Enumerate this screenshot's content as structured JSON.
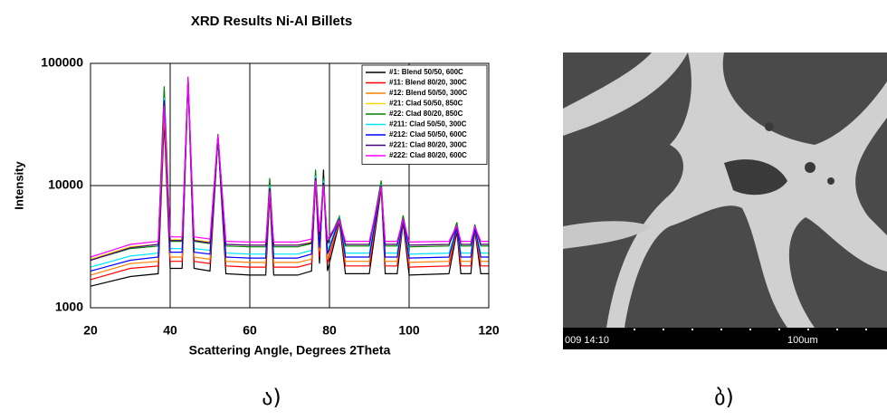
{
  "chart_data": {
    "type": "line",
    "title": "XRD Results Ni-Al Billets",
    "xlabel": "Scattering Angle, Degrees 2Theta",
    "ylabel": "Intensity",
    "yscale": "log",
    "grid": true,
    "legend": "upper right",
    "xlim": [
      20,
      120
    ],
    "xticks": [
      20,
      40,
      60,
      80,
      100,
      120
    ],
    "ylim": [
      1000,
      100000
    ],
    "yticks": [
      1000,
      10000,
      100000
    ],
    "x": [
      20,
      30,
      37,
      38.5,
      40,
      43,
      44.5,
      46,
      50,
      52,
      54,
      60,
      64,
      65,
      66,
      72,
      75.5,
      76.5,
      77.5,
      78.5,
      79.5,
      82.5,
      84,
      90,
      93,
      94,
      97,
      98.5,
      100,
      110,
      112,
      113,
      115.5,
      116.5,
      118,
      120
    ],
    "series": [
      {
        "name": "#1: Blend 50/50, 600C",
        "color": "#000000",
        "values": [
          1500,
          1800,
          1900,
          33000,
          2100,
          2100,
          72000,
          2100,
          2000,
          24000,
          1900,
          1850,
          1850,
          8500,
          1850,
          1850,
          2000,
          11000,
          2300,
          13500,
          2000,
          5000,
          1900,
          1900,
          9500,
          1900,
          1900,
          5000,
          1850,
          1900,
          4200,
          1900,
          1900,
          4300,
          1900,
          1900
        ]
      },
      {
        "name": "#11: Blend 80/20, 300C",
        "color": "#ff0000",
        "values": [
          1700,
          2100,
          2200,
          40000,
          2400,
          2400,
          74000,
          2400,
          2300,
          25000,
          2200,
          2150,
          2150,
          9000,
          2150,
          2150,
          2300,
          11000,
          2600,
          11000,
          2300,
          5200,
          2200,
          2200,
          10000,
          2200,
          2200,
          5200,
          2150,
          2200,
          4400,
          2200,
          2200,
          4400,
          2200,
          2200
        ]
      },
      {
        "name": "#12: Blend 50/50, 300C",
        "color": "#ff8000",
        "values": [
          1850,
          2300,
          2400,
          42000,
          2600,
          2600,
          75000,
          2600,
          2500,
          25000,
          2400,
          2350,
          2350,
          9500,
          2350,
          2350,
          2500,
          11500,
          2900,
          11000,
          2500,
          5200,
          2400,
          2400,
          10000,
          2400,
          2400,
          5300,
          2350,
          2400,
          4500,
          2400,
          2400,
          4500,
          2400,
          2400
        ]
      },
      {
        "name": "#21: Clad 50/50, 850C",
        "color": "#ffd700",
        "values": [
          2500,
          3150,
          3300,
          55000,
          3600,
          3600,
          76000,
          3600,
          3450,
          26000,
          3300,
          3250,
          3250,
          10500,
          3250,
          3250,
          3450,
          12500,
          4000,
          11000,
          3450,
          5500,
          3300,
          3300,
          10500,
          3300,
          3300,
          5600,
          3250,
          3300,
          4800,
          3300,
          3300,
          4700,
          3300,
          3300
        ]
      },
      {
        "name": "#22: Clad 80/20, 850C",
        "color": "#008000",
        "values": [
          2450,
          3050,
          3200,
          65000,
          3500,
          3500,
          77000,
          3500,
          3350,
          26500,
          3200,
          3150,
          3150,
          11500,
          3150,
          3150,
          3350,
          13500,
          3850,
          11500,
          3350,
          5600,
          3200,
          3200,
          11000,
          3200,
          3200,
          5700,
          3150,
          3200,
          5000,
          3200,
          3200,
          4800,
          3200,
          3200
        ]
      },
      {
        "name": "#211: Clad 50/50, 300C",
        "color": "#00e5ff",
        "values": [
          2150,
          2650,
          2800,
          52000,
          3050,
          3050,
          75000,
          3050,
          2950,
          25500,
          2800,
          2750,
          2750,
          10000,
          2750,
          2750,
          2950,
          12000,
          3350,
          11000,
          2950,
          5400,
          2800,
          2800,
          10200,
          2800,
          2800,
          5400,
          2750,
          2800,
          4600,
          2800,
          2800,
          4600,
          2800,
          2800
        ]
      },
      {
        "name": "#212: Clad 50/50, 600C",
        "color": "#0000ff",
        "values": [
          2000,
          2450,
          2600,
          50000,
          2850,
          2850,
          74000,
          2850,
          2750,
          25000,
          2600,
          2550,
          2550,
          9500,
          2550,
          2550,
          2750,
          11500,
          3100,
          10500,
          2750,
          5300,
          2600,
          2600,
          10000,
          2600,
          2600,
          5300,
          2550,
          2600,
          4500,
          2600,
          2600,
          4500,
          2600,
          2600
        ]
      },
      {
        "name": "#221: Clad 80/20, 300C",
        "color": "#4b0082",
        "values": [
          2450,
          3100,
          3300,
          48000,
          3550,
          3550,
          76000,
          3550,
          3400,
          25500,
          3300,
          3250,
          3250,
          9500,
          3250,
          3250,
          3400,
          11500,
          3950,
          10500,
          3400,
          5300,
          3300,
          3300,
          10000,
          3300,
          3300,
          5400,
          3250,
          3300,
          4600,
          3300,
          3300,
          4600,
          3300,
          3300
        ]
      },
      {
        "name": "#222: Clad 80/20, 600C",
        "color": "#ff00ff",
        "values": [
          2600,
          3300,
          3500,
          45000,
          3800,
          3800,
          78000,
          3800,
          3650,
          26000,
          3500,
          3450,
          3450,
          9000,
          3450,
          3450,
          3650,
          11000,
          4200,
          10000,
          3650,
          5200,
          3500,
          3500,
          9800,
          3500,
          3500,
          5300,
          3450,
          3500,
          4700,
          3500,
          3500,
          4600,
          3500,
          3500
        ]
      }
    ]
  },
  "image": {
    "timestamp": "009 14:10",
    "scale_label": "100um"
  },
  "captions": [
    "ა)",
    "ბ)"
  ]
}
